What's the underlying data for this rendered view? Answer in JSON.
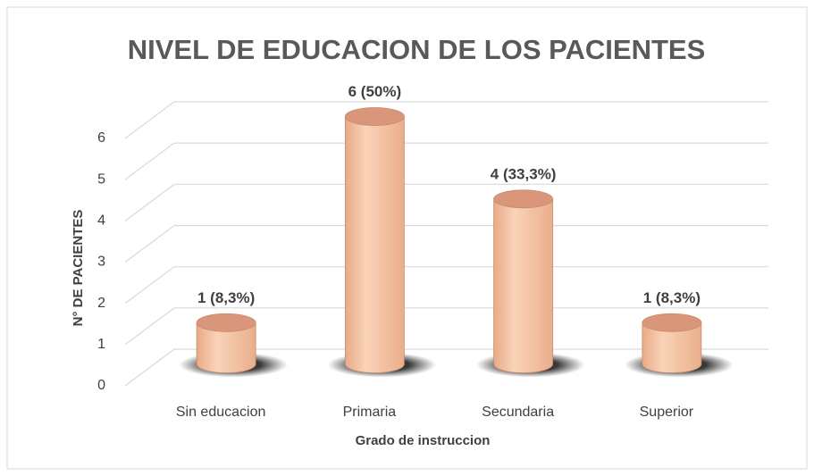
{
  "chart_data": {
    "type": "cylinder",
    "title": "NIVEL DE EDUCACION DE LOS PACIENTES",
    "x_label": "Grado de instruccion",
    "y_label": "N° DE PACIENTES",
    "categories": [
      "Sin educacion",
      "Primaria",
      "Secundaria",
      "Superior"
    ],
    "values": [
      1,
      6,
      4,
      1
    ],
    "value_labels": [
      "1 (8,3%)",
      "6 (50%)",
      "4 (33,3%)",
      "1 (8,3%)"
    ],
    "color": "#f5c4a4",
    "ylim": [
      0,
      6
    ],
    "yticks": [
      0,
      1,
      2,
      3,
      4,
      5,
      6
    ],
    "grid": true
  }
}
